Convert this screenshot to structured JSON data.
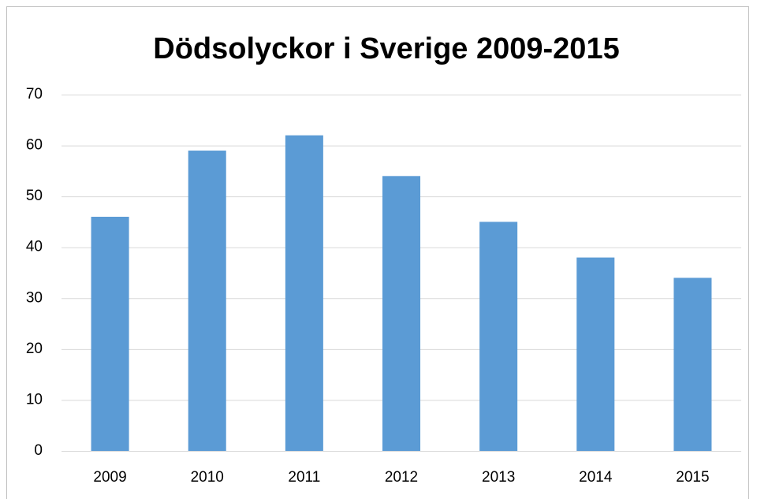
{
  "chart_data": {
    "type": "bar",
    "title": "Dödsolyckor i Sverige 2009-2015",
    "categories": [
      "2009",
      "2010",
      "2011",
      "2012",
      "2013",
      "2014",
      "2015"
    ],
    "values": [
      46,
      59,
      62,
      54,
      45,
      38,
      34
    ],
    "color": "#5b9bd5",
    "ylim": [
      0,
      70
    ],
    "yticks": [
      0,
      10,
      20,
      30,
      40,
      50,
      60,
      70
    ],
    "grid": true
  }
}
